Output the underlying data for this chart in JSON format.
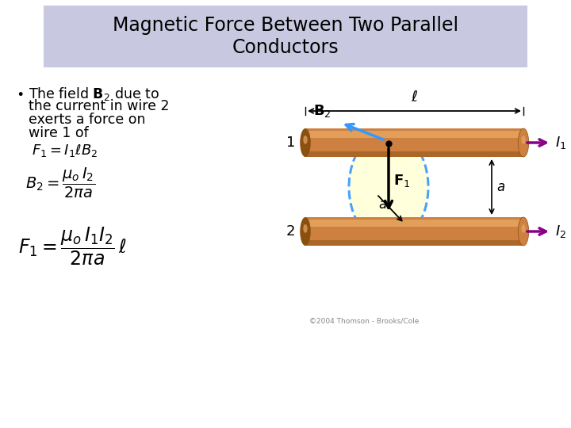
{
  "title_line1": "Magnetic Force Between Two Parallel",
  "title_line2": "Conductors",
  "title_bg_color": "#c8c8e0",
  "bg_color": "#ffffff",
  "wire_color": "#cd8040",
  "wire_highlight": "#e8a860",
  "wire_shadow": "#8b5010",
  "ellipse_fill": "#ffffd8",
  "ellipse_edge": "#3399ff",
  "current_arrow_color": "#880088",
  "B2_arrow_color": "#3399ff",
  "F1_arrow_color": "#111111",
  "label_color": "#000000",
  "copyright_text": "©2004 Thomson - Brooks/Cole"
}
